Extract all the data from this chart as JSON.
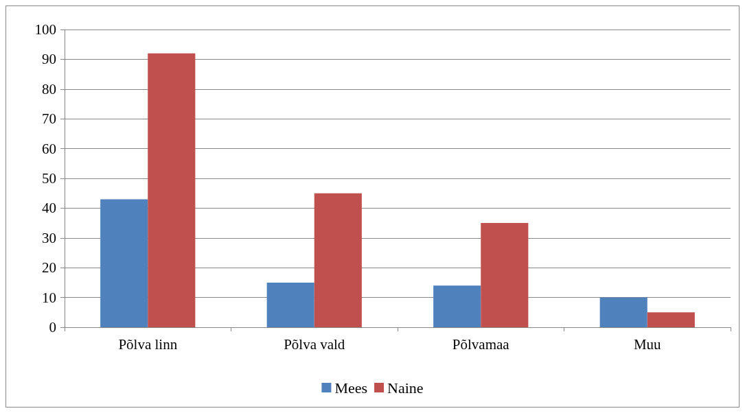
{
  "chart_data": {
    "type": "bar",
    "categories": [
      "Põlva linn",
      "Põlva vald",
      "Põlvamaa",
      "Muu"
    ],
    "series": [
      {
        "name": "Mees",
        "color": "#4f81bd",
        "values": [
          43,
          15,
          14,
          10
        ]
      },
      {
        "name": "Naine",
        "color": "#c0504d",
        "values": [
          92,
          45,
          35,
          5
        ]
      }
    ],
    "ylim": [
      0,
      100
    ],
    "yticks": [
      0,
      10,
      20,
      30,
      40,
      50,
      60,
      70,
      80,
      90,
      100
    ],
    "grid": "y",
    "legend": "bottom"
  }
}
